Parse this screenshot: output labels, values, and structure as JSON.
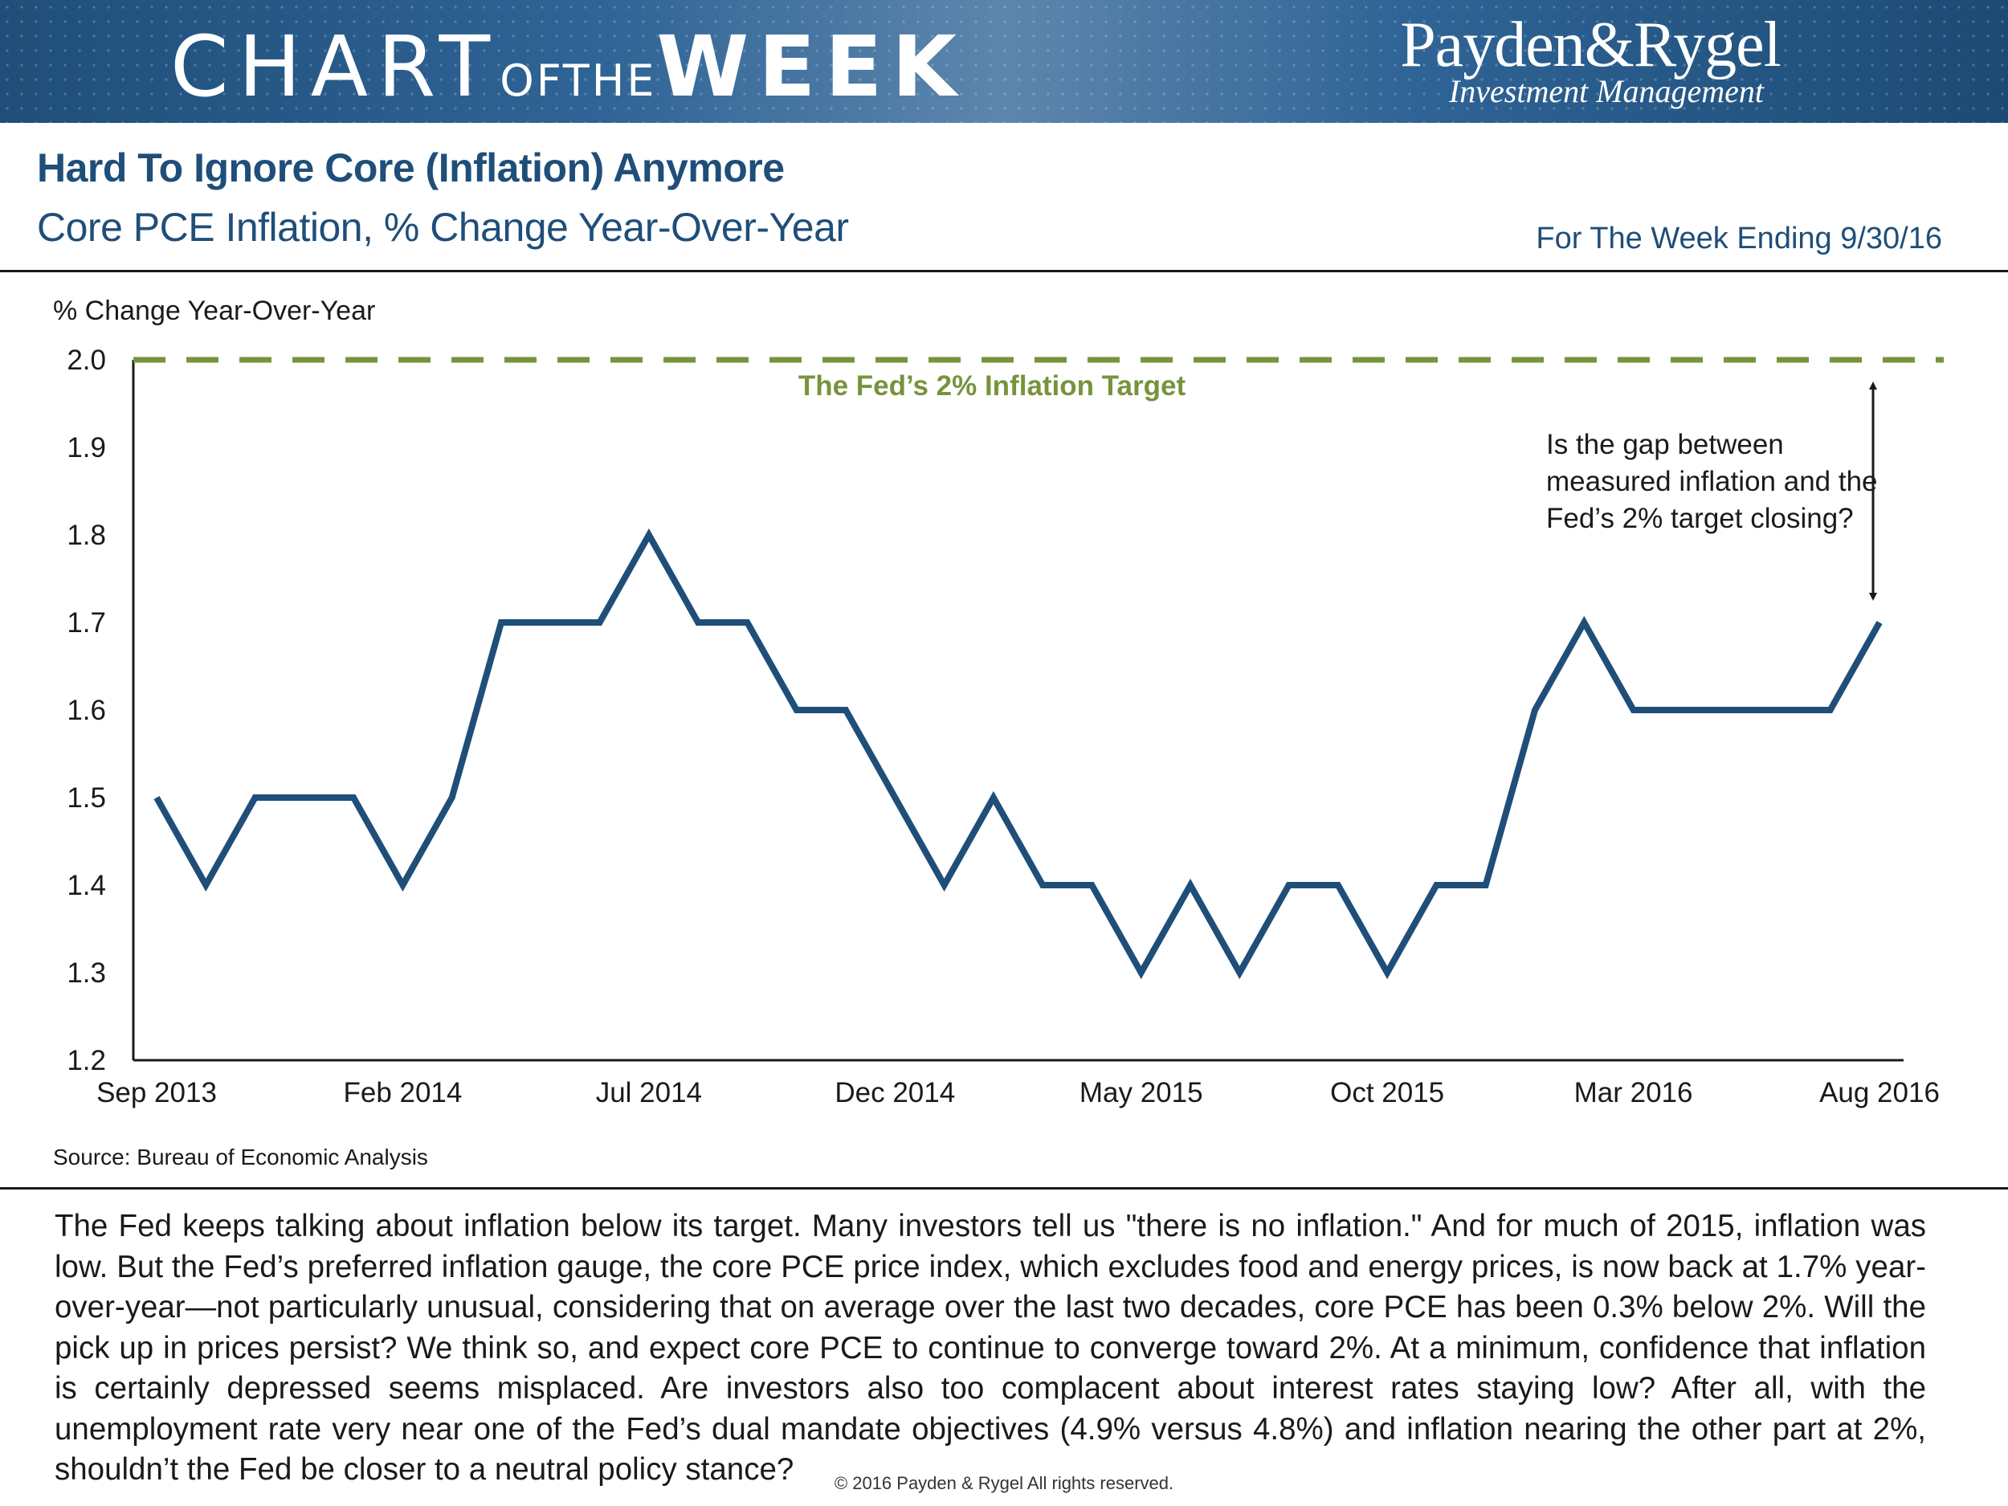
{
  "banner": {
    "title_chart": "CHART",
    "title_ofthe": "OFTHE",
    "title_week": "WEEK",
    "brand_name": "Payden&Rygel",
    "brand_sub": "Investment Management"
  },
  "header": {
    "title": "Hard To Ignore Core (Inflation) Anymore",
    "subtitle": "Core PCE Inflation, % Change Year-Over-Year",
    "week_ending": "For The Week Ending 9/30/16"
  },
  "colors": {
    "brand_blue": "#1f4e79",
    "line": "#1f4e79",
    "target": "#77933c",
    "axis": "#1a1a1a"
  },
  "chart_data": {
    "type": "line",
    "title": "Core PCE Inflation, % Change Year-Over-Year",
    "ylabel": "% Change Year-Over-Year",
    "xlabel": "",
    "ylim": [
      1.2,
      2.0
    ],
    "yticks": [
      "2.0",
      "1.9",
      "1.8",
      "1.7",
      "1.6",
      "1.5",
      "1.4",
      "1.3",
      "1.2"
    ],
    "grid": false,
    "xtick_labels": [
      "Sep 2013",
      "Feb 2014",
      "Jul 2014",
      "Dec 2014",
      "May 2015",
      "Oct 2015",
      "Mar 2016",
      "Aug 2016"
    ],
    "xtick_index": [
      0,
      5,
      10,
      15,
      20,
      25,
      30,
      35
    ],
    "x": [
      "Sep 2013",
      "Oct 2013",
      "Nov 2013",
      "Dec 2013",
      "Jan 2014",
      "Feb 2014",
      "Mar 2014",
      "Apr 2014",
      "May 2014",
      "Jun 2014",
      "Jul 2014",
      "Aug 2014",
      "Sep 2014",
      "Oct 2014",
      "Nov 2014",
      "Dec 2014",
      "Jan 2015",
      "Feb 2015",
      "Mar 2015",
      "Apr 2015",
      "May 2015",
      "Jun 2015",
      "Jul 2015",
      "Aug 2015",
      "Sep 2015",
      "Oct 2015",
      "Nov 2015",
      "Dec 2015",
      "Jan 2016",
      "Feb 2016",
      "Mar 2016",
      "Apr 2016",
      "May 2016",
      "Jun 2016",
      "Jul 2016",
      "Aug 2016"
    ],
    "series": [
      {
        "name": "Core PCE Inflation",
        "values": [
          1.5,
          1.4,
          1.5,
          1.5,
          1.5,
          1.4,
          1.5,
          1.7,
          1.7,
          1.7,
          1.8,
          1.7,
          1.7,
          1.6,
          1.6,
          1.5,
          1.4,
          1.5,
          1.4,
          1.4,
          1.3,
          1.4,
          1.3,
          1.4,
          1.4,
          1.3,
          1.4,
          1.4,
          1.6,
          1.7,
          1.6,
          1.6,
          1.6,
          1.6,
          1.6,
          1.7
        ]
      }
    ],
    "reference_line": {
      "value": 2.0,
      "label": "The Fed’s 2% Inflation Target",
      "style": "dashed"
    },
    "annotation": {
      "lines": [
        "Is the gap between",
        "measured inflation and the",
        "Fed’s 2% target closing?"
      ],
      "arrow_from": 2.0,
      "arrow_to": 1.7
    },
    "source": "Source: Bureau of Economic Analysis"
  },
  "body": {
    "text": "The Fed keeps talking about inflation below its target. Many investors tell us \"there is no inflation.\" And for much of 2015, inflation was low. But the Fed’s preferred inflation gauge, the core PCE price index, which excludes food and energy prices, is now back at 1.7% year-over-year—not particularly unusual, considering that on average over the last two decades, core PCE has been 0.3% below 2%. Will the pick up in prices persist? We think so, and expect core PCE to continue to converge toward 2%. At a minimum, confidence that inflation is certainly depressed seems misplaced. Are investors also too complacent about interest rates staying low? After all, with the unemployment rate very near one of the Fed’s dual mandate objectives (4.9% versus 4.8%) and inflation nearing the other part at 2%, shouldn’t the Fed be closer to a neutral policy stance?"
  },
  "footer": {
    "copyright": "© 2016 Payden & Rygel All rights reserved."
  }
}
